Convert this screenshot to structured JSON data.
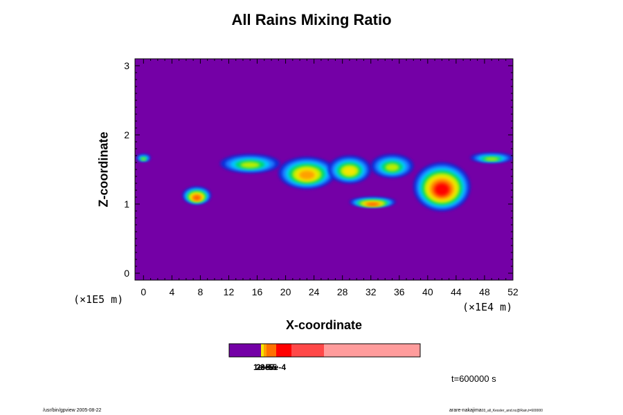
{
  "title": "All Rains Mixing Ratio",
  "chart_data": {
    "type": "heatmap",
    "title": "All Rains Mixing Ratio",
    "xlabel": "X-coordinate",
    "ylabel": "Z-coordinate",
    "x_unit": "(×1E4 m)",
    "y_unit": "(×1E5 m)",
    "xlim": [
      -1.2,
      52
    ],
    "ylim": [
      -0.1,
      3.1
    ],
    "x_ticks": [
      0,
      4,
      8,
      12,
      16,
      20,
      24,
      28,
      32,
      36,
      40,
      44,
      48,
      52
    ],
    "y_ticks": [
      0,
      1,
      2,
      3
    ],
    "background_color": "#7400a6",
    "colorbar": {
      "tick_labels": [
        "1e-5",
        "2e-5",
        "3e-5",
        "5e-4"
      ],
      "colors": [
        "#7400a6",
        "#f5e600",
        "#ffa000",
        "#ff7000",
        "#ff0000",
        "#ff4848",
        "#ff9c9c"
      ]
    },
    "rain_regions": [
      {
        "x": [
          -1.0,
          1.0
        ],
        "z": [
          1.62,
          1.72
        ],
        "level": 2
      },
      {
        "x": [
          5.5,
          9.5
        ],
        "z": [
          1.0,
          1.25
        ],
        "level": 5
      },
      {
        "x": [
          10.8,
          19.2
        ],
        "z": [
          1.45,
          1.72
        ],
        "level": 2
      },
      {
        "x": [
          19.0,
          27.0
        ],
        "z": [
          1.22,
          1.68
        ],
        "level": 4
      },
      {
        "x": [
          26.0,
          32.0
        ],
        "z": [
          1.3,
          1.7
        ],
        "level": 3
      },
      {
        "x": [
          29.0,
          35.5
        ],
        "z": [
          0.96,
          1.1
        ],
        "level": 5
      },
      {
        "x": [
          32.0,
          38.0
        ],
        "z": [
          1.38,
          1.72
        ],
        "level": 2
      },
      {
        "x": [
          38.0,
          46.0
        ],
        "z": [
          0.9,
          1.6
        ],
        "level": 6
      },
      {
        "x": [
          46.0,
          52.0
        ],
        "z": [
          1.6,
          1.74
        ],
        "level": 2
      }
    ],
    "time_label": "t=600000 s"
  },
  "footer": {
    "left": "/usr/bin/gpview 2005-08-22",
    "right_main": "arare-nakajima",
    "right_small": "03_all_Kessler_and.nc@Rain,t=600000"
  }
}
